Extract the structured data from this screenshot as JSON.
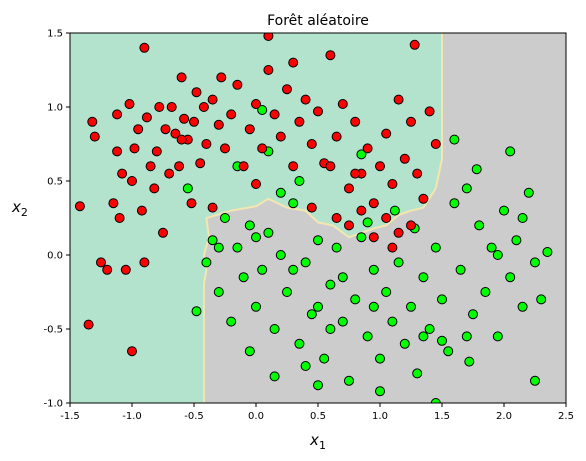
{
  "chart_data": {
    "type": "scatter",
    "title": "Forêt aléatoire",
    "xlabel": "x",
    "xlabel_sub": "1",
    "ylabel": "x",
    "ylabel_sub": "2",
    "xlim": [
      -1.5,
      2.5
    ],
    "ylim": [
      -1.0,
      1.5
    ],
    "xticks": [
      "-1.5",
      "-1.0",
      "-0.5",
      "0.0",
      "0.5",
      "1.0",
      "1.5",
      "2.0",
      "2.5"
    ],
    "yticks": [
      "-1.0",
      "-0.5",
      "0.0",
      "0.5",
      "1.0",
      "1.5"
    ],
    "grid": false,
    "colors": {
      "class0_point": "#ff0000",
      "class1_point": "#00ff00",
      "region0": "#b3e2cd",
      "region1": "#cccccc",
      "boundary": "#f4e6b0"
    },
    "decision_boundary": [
      [
        -0.42,
        -1.0
      ],
      [
        -0.42,
        -0.2
      ],
      [
        -0.4,
        -0.1
      ],
      [
        -0.42,
        0.0
      ],
      [
        -0.38,
        0.12
      ],
      [
        -0.4,
        0.25
      ],
      [
        -0.2,
        0.3
      ],
      [
        0.0,
        0.33
      ],
      [
        0.1,
        0.38
      ],
      [
        0.25,
        0.32
      ],
      [
        0.4,
        0.3
      ],
      [
        0.5,
        0.22
      ],
      [
        0.62,
        0.2
      ],
      [
        0.75,
        0.12
      ],
      [
        0.85,
        0.15
      ],
      [
        0.95,
        0.18
      ],
      [
        1.05,
        0.2
      ],
      [
        1.15,
        0.27
      ],
      [
        1.25,
        0.3
      ],
      [
        1.35,
        0.32
      ],
      [
        1.45,
        0.45
      ],
      [
        1.5,
        0.65
      ],
      [
        1.5,
        1.5
      ]
    ],
    "series": [
      {
        "class": 0,
        "points": [
          [
            -1.42,
            0.33
          ],
          [
            -1.35,
            -0.47
          ],
          [
            -1.3,
            0.8
          ],
          [
            -1.32,
            0.9
          ],
          [
            -1.25,
            -0.05
          ],
          [
            -1.2,
            -0.1
          ],
          [
            -1.15,
            0.35
          ],
          [
            -1.12,
            0.7
          ],
          [
            -1.1,
            0.25
          ],
          [
            -1.08,
            0.55
          ],
          [
            -1.05,
            -0.1
          ],
          [
            -1.02,
            1.02
          ],
          [
            -1.0,
            0.5
          ],
          [
            -1.0,
            -0.65
          ],
          [
            -0.98,
            0.72
          ],
          [
            -0.95,
            0.85
          ],
          [
            -0.92,
            0.3
          ],
          [
            -0.9,
            -0.05
          ],
          [
            -0.88,
            0.93
          ],
          [
            -0.85,
            0.6
          ],
          [
            -0.82,
            0.45
          ],
          [
            -0.8,
            0.7
          ],
          [
            -0.78,
            1.0
          ],
          [
            -0.75,
            0.15
          ],
          [
            -0.73,
            0.85
          ],
          [
            -0.7,
            0.55
          ],
          [
            -0.68,
            1.0
          ],
          [
            -0.65,
            0.82
          ],
          [
            -0.62,
            0.6
          ],
          [
            -0.6,
            1.2
          ],
          [
            -0.58,
            0.92
          ],
          [
            -0.55,
            0.78
          ],
          [
            -0.52,
            0.35
          ],
          [
            -0.5,
            0.9
          ],
          [
            -0.48,
            1.1
          ],
          [
            -0.45,
            0.62
          ],
          [
            -0.42,
            1.0
          ],
          [
            -0.4,
            0.75
          ],
          [
            -0.35,
            1.05
          ],
          [
            -0.3,
            0.88
          ],
          [
            -0.28,
            1.2
          ],
          [
            -0.25,
            0.72
          ],
          [
            -0.2,
            0.95
          ],
          [
            -0.15,
            1.15
          ],
          [
            -0.1,
            0.6
          ],
          [
            -0.05,
            0.85
          ],
          [
            0.0,
            1.02
          ],
          [
            0.05,
            0.72
          ],
          [
            0.1,
            1.25
          ],
          [
            0.15,
            0.95
          ],
          [
            0.2,
            0.8
          ],
          [
            0.25,
            1.12
          ],
          [
            0.3,
            1.3
          ],
          [
            0.35,
            0.9
          ],
          [
            0.4,
            1.05
          ],
          [
            0.45,
            0.75
          ],
          [
            0.5,
            0.97
          ],
          [
            0.55,
            0.62
          ],
          [
            0.6,
            1.35
          ],
          [
            0.65,
            0.8
          ],
          [
            0.7,
            1.02
          ],
          [
            0.75,
            0.45
          ],
          [
            0.8,
            0.9
          ],
          [
            0.85,
            0.55
          ],
          [
            0.9,
            0.72
          ],
          [
            0.95,
            0.35
          ],
          [
            1.0,
            0.6
          ],
          [
            1.05,
            0.82
          ],
          [
            1.1,
            0.48
          ],
          [
            1.15,
            1.05
          ],
          [
            1.2,
            0.65
          ],
          [
            1.25,
            0.9
          ],
          [
            1.3,
            0.55
          ],
          [
            1.35,
            0.38
          ],
          [
            1.4,
            0.97
          ],
          [
            1.45,
            0.75
          ],
          [
            1.28,
            1.42
          ],
          [
            0.1,
            1.48
          ],
          [
            -0.9,
            1.4
          ],
          [
            0.45,
            0.32
          ],
          [
            0.65,
            0.25
          ],
          [
            0.75,
            0.2
          ],
          [
            0.85,
            0.3
          ],
          [
            0.95,
            0.12
          ],
          [
            1.05,
            0.25
          ],
          [
            1.15,
            0.15
          ],
          [
            1.25,
            0.2
          ],
          [
            1.1,
            0.05
          ],
          [
            0.8,
            0.55
          ],
          [
            0.6,
            0.6
          ],
          [
            0.0,
            0.48
          ],
          [
            -0.35,
            0.32
          ],
          [
            -0.6,
            0.78
          ],
          [
            -1.12,
            0.95
          ],
          [
            0.3,
            0.6
          ]
        ]
      },
      {
        "class": 1,
        "points": [
          [
            -0.55,
            0.45
          ],
          [
            -0.48,
            -0.38
          ],
          [
            -0.4,
            -0.05
          ],
          [
            -0.35,
            0.1
          ],
          [
            -0.3,
            -0.25
          ],
          [
            -0.25,
            0.25
          ],
          [
            -0.2,
            -0.45
          ],
          [
            -0.15,
            0.05
          ],
          [
            -0.1,
            -0.15
          ],
          [
            -0.05,
            0.2
          ],
          [
            0.0,
            -0.35
          ],
          [
            0.05,
            -0.1
          ],
          [
            0.1,
            0.15
          ],
          [
            0.15,
            -0.5
          ],
          [
            0.2,
            0.0
          ],
          [
            0.25,
            -0.25
          ],
          [
            0.3,
            0.35
          ],
          [
            0.35,
            -0.6
          ],
          [
            0.4,
            -0.05
          ],
          [
            0.45,
            -0.4
          ],
          [
            0.5,
            0.1
          ],
          [
            0.55,
            -0.7
          ],
          [
            0.6,
            -0.2
          ],
          [
            0.65,
            0.05
          ],
          [
            0.7,
            -0.45
          ],
          [
            0.75,
            -0.85
          ],
          [
            0.8,
            -0.3
          ],
          [
            0.85,
            0.12
          ],
          [
            0.9,
            -0.55
          ],
          [
            0.95,
            -0.1
          ],
          [
            1.0,
            -0.7
          ],
          [
            1.05,
            -0.25
          ],
          [
            1.1,
            -0.45
          ],
          [
            1.15,
            -0.05
          ],
          [
            1.2,
            -0.6
          ],
          [
            1.25,
            -0.35
          ],
          [
            1.3,
            -0.8
          ],
          [
            1.35,
            -0.15
          ],
          [
            1.4,
            -0.5
          ],
          [
            1.45,
            0.05
          ],
          [
            1.5,
            -0.3
          ],
          [
            1.55,
            -0.65
          ],
          [
            1.6,
            0.35
          ],
          [
            1.65,
            -0.1
          ],
          [
            1.7,
            0.45
          ],
          [
            1.75,
            -0.4
          ],
          [
            1.8,
            0.2
          ],
          [
            1.85,
            -0.25
          ],
          [
            1.9,
            0.05
          ],
          [
            1.95,
            -0.55
          ],
          [
            2.0,
            0.3
          ],
          [
            2.05,
            -0.15
          ],
          [
            2.1,
            0.1
          ],
          [
            2.15,
            -0.35
          ],
          [
            2.2,
            0.42
          ],
          [
            2.25,
            -0.05
          ],
          [
            2.3,
            -0.3
          ],
          [
            2.35,
            0.02
          ],
          [
            1.6,
            0.78
          ],
          [
            1.78,
            0.58
          ],
          [
            2.05,
            0.7
          ],
          [
            1.95,
            0.0
          ],
          [
            1.72,
            -0.72
          ],
          [
            1.5,
            -0.58
          ],
          [
            1.35,
            -0.55
          ],
          [
            0.9,
            0.22
          ],
          [
            0.7,
            -0.15
          ],
          [
            0.5,
            -0.35
          ],
          [
            0.3,
            -0.1
          ],
          [
            0.0,
            0.12
          ],
          [
            -0.3,
            0.05
          ],
          [
            1.12,
            0.3
          ],
          [
            1.28,
            0.18
          ],
          [
            0.2,
            0.42
          ],
          [
            0.35,
            0.5
          ],
          [
            0.1,
            0.7
          ],
          [
            -0.15,
            0.6
          ],
          [
            0.05,
            0.98
          ],
          [
            0.85,
            0.68
          ],
          [
            0.5,
            -0.88
          ],
          [
            1.0,
            -0.92
          ],
          [
            1.45,
            -1.0
          ],
          [
            2.25,
            -0.85
          ],
          [
            1.7,
            -0.55
          ],
          [
            0.6,
            -0.5
          ],
          [
            0.95,
            -0.35
          ],
          [
            0.4,
            -0.75
          ],
          [
            0.15,
            -0.82
          ],
          [
            -0.05,
            -0.65
          ],
          [
            2.15,
            0.25
          ]
        ]
      }
    ]
  }
}
